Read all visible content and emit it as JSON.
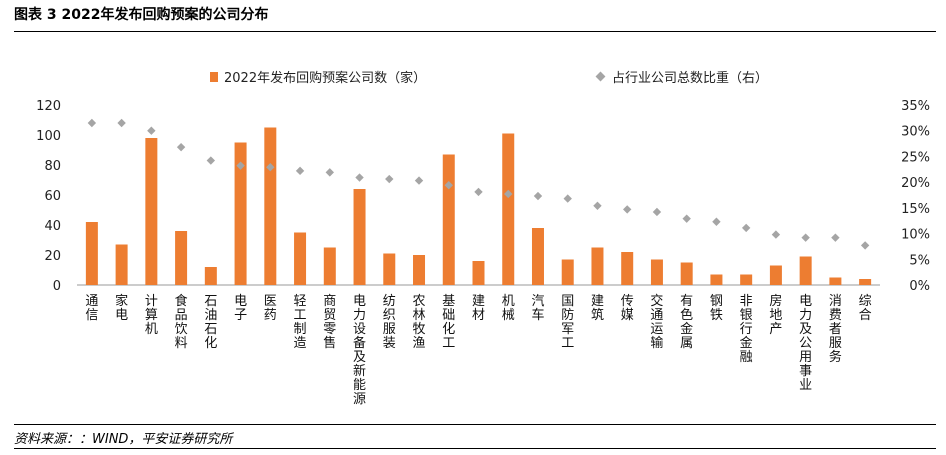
{
  "header": {
    "title": "图表 3 2022年发布回购预案的公司分布"
  },
  "footer": {
    "source": "资料来源：：WIND，平安证券研究所"
  },
  "colors": {
    "bar": "#ED7D31",
    "marker": "#A5A5A5"
  },
  "chart_data": {
    "type": "bar",
    "categories": [
      "通信",
      "家电",
      "计算机",
      "食品饮料",
      "石油石化",
      "电子",
      "医药",
      "轻工制造",
      "商贸零售",
      "电力设备及新能源",
      "纺织服装",
      "农林牧渔",
      "基础化工",
      "建材",
      "机械",
      "汽车",
      "国防军工",
      "建筑",
      "传媒",
      "交通运输",
      "有色金属",
      "钢铁",
      "非银行金融",
      "房地产",
      "电力及公用事业",
      "消费者服务",
      "综合"
    ],
    "series": [
      {
        "name": "2022年发布回购预案公司数（家）",
        "type": "bar",
        "axis": "left",
        "values": [
          42,
          27,
          98,
          36,
          12,
          95,
          105,
          35,
          25,
          64,
          21,
          20,
          87,
          16,
          101,
          38,
          17,
          25,
          22,
          17,
          15,
          7,
          7,
          13,
          19,
          5,
          4
        ]
      },
      {
        "name": "占行业公司总数比重（右）",
        "type": "scatter",
        "axis": "right",
        "values": [
          31.5,
          31.5,
          30.0,
          26.8,
          24.2,
          23.2,
          22.9,
          22.2,
          21.9,
          20.9,
          20.6,
          20.3,
          19.4,
          18.1,
          17.7,
          17.3,
          16.8,
          15.4,
          14.7,
          14.2,
          12.9,
          12.3,
          11.1,
          9.8,
          9.2,
          9.2,
          7.7
        ]
      }
    ],
    "y_left": {
      "min": 0,
      "max": 120,
      "ticks": [
        "0",
        "20",
        "40",
        "60",
        "80",
        "100",
        "120"
      ]
    },
    "y_right": {
      "min": 0,
      "max": 35,
      "ticks": [
        "0%",
        "5%",
        "10%",
        "15%",
        "20%",
        "25%",
        "30%",
        "35%"
      ]
    },
    "legend": "top",
    "grid": false
  }
}
